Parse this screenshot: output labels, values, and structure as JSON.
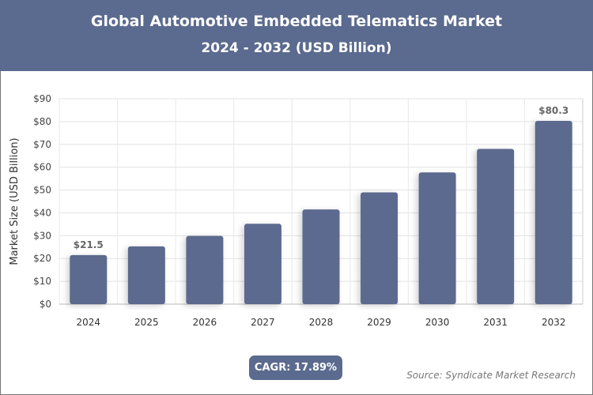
{
  "chart_data": {
    "type": "bar",
    "title": "Global Automotive Embedded Telematics Market",
    "subtitle": "2024 - 2032 (USD Billion)",
    "xlabel": "",
    "ylabel": "Market Size (USD Billion)",
    "categories": [
      "2024",
      "2025",
      "2026",
      "2027",
      "2028",
      "2029",
      "2030",
      "2031",
      "2032"
    ],
    "values": [
      21.5,
      25.3,
      29.9,
      35.2,
      41.5,
      49.0,
      57.7,
      68.0,
      80.3
    ],
    "data_labels": {
      "0": "$21.5",
      "8": "$80.3"
    },
    "ylim": [
      0,
      90
    ],
    "yticks": [
      "$0",
      "$10",
      "$20",
      "$30",
      "$40",
      "$50",
      "$60",
      "$70",
      "$80",
      "$90"
    ],
    "grid": true,
    "bar_color": "#5b6a8f"
  },
  "cagr": "CAGR: 17.89%",
  "source": "Source: Syndicate Market Research"
}
